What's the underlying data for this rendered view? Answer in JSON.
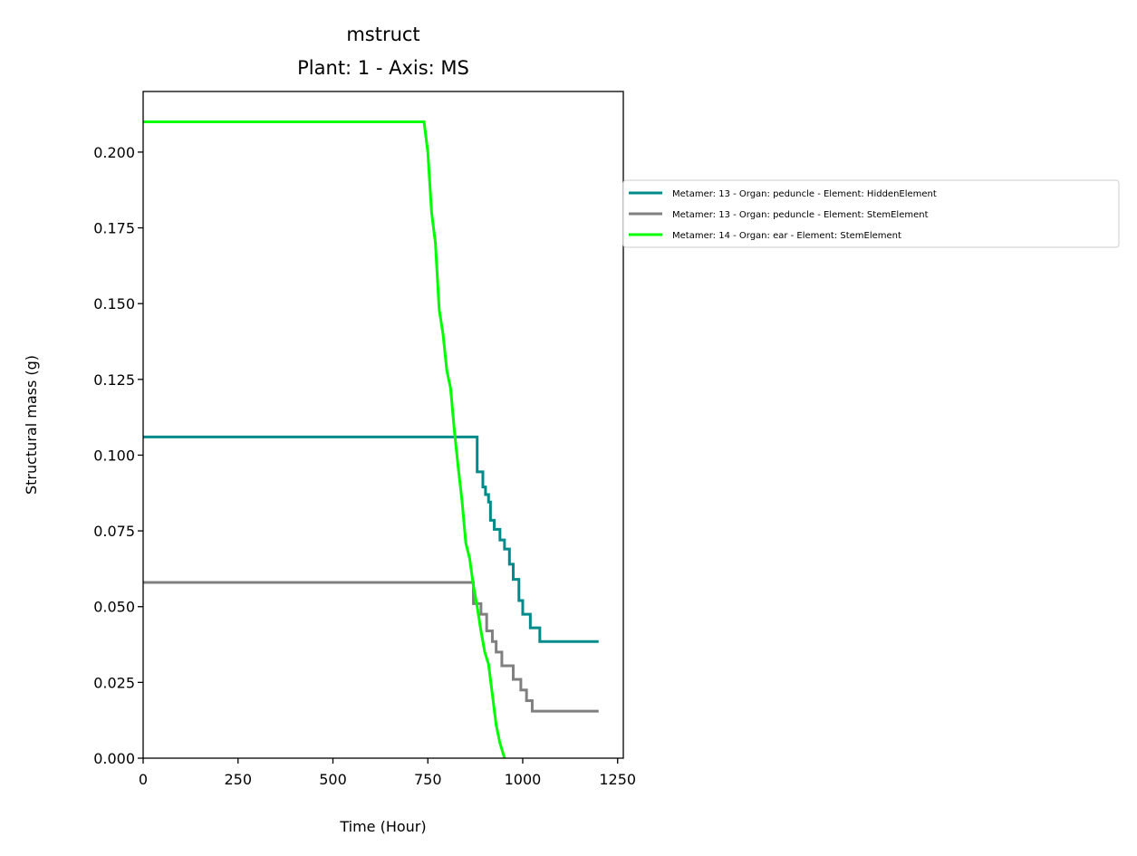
{
  "chart_data": {
    "type": "line",
    "title": "mstruct",
    "subtitle": "Plant: 1 - Axis: MS",
    "xlabel": "Time (Hour)",
    "ylabel": "Structural mass (g)",
    "xlim": [
      0,
      1265
    ],
    "ylim": [
      0,
      0.22
    ],
    "xticks": [
      0,
      250,
      500,
      750,
      1000,
      1250
    ],
    "xtick_labels": [
      "0",
      "250",
      "500",
      "750",
      "1000",
      "1250"
    ],
    "yticks": [
      0,
      0.025,
      0.05,
      0.075,
      0.1,
      0.125,
      0.15,
      0.175,
      0.2
    ],
    "ytick_labels": [
      "0.000",
      "0.025",
      "0.050",
      "0.075",
      "0.100",
      "0.125",
      "0.150",
      "0.175",
      "0.200"
    ],
    "grid": false,
    "legend_position": "outside-right",
    "series": [
      {
        "name": "Metamer: 13 - Organ: peduncle - Element: HiddenElement",
        "color": "#008b8b",
        "step": true,
        "points": [
          [
            0,
            0.106
          ],
          [
            870,
            0.106
          ],
          [
            880,
            0.0945
          ],
          [
            895,
            0.0895
          ],
          [
            902,
            0.087
          ],
          [
            910,
            0.0845
          ],
          [
            915,
            0.0785
          ],
          [
            925,
            0.0755
          ],
          [
            940,
            0.072
          ],
          [
            952,
            0.069
          ],
          [
            965,
            0.064
          ],
          [
            975,
            0.059
          ],
          [
            990,
            0.052
          ],
          [
            1000,
            0.0475
          ],
          [
            1020,
            0.043
          ],
          [
            1045,
            0.0385
          ],
          [
            1200,
            0.0385
          ]
        ]
      },
      {
        "name": "Metamer: 13 - Organ: peduncle - Element: StemElement",
        "color": "#808080",
        "step": true,
        "points": [
          [
            0,
            0.058
          ],
          [
            860,
            0.058
          ],
          [
            870,
            0.051
          ],
          [
            890,
            0.0475
          ],
          [
            905,
            0.042
          ],
          [
            920,
            0.0385
          ],
          [
            930,
            0.035
          ],
          [
            945,
            0.0305
          ],
          [
            975,
            0.026
          ],
          [
            995,
            0.0225
          ],
          [
            1010,
            0.019
          ],
          [
            1025,
            0.0155
          ],
          [
            1200,
            0.0155
          ]
        ]
      },
      {
        "name": "Metamer: 14 - Organ: ear - Element: StemElement",
        "color": "#00ff00",
        "step": false,
        "points": [
          [
            0,
            0.21
          ],
          [
            740,
            0.21
          ],
          [
            750,
            0.2
          ],
          [
            760,
            0.18
          ],
          [
            770,
            0.17
          ],
          [
            780,
            0.148
          ],
          [
            790,
            0.14
          ],
          [
            800,
            0.128
          ],
          [
            810,
            0.122
          ],
          [
            820,
            0.108
          ],
          [
            830,
            0.096
          ],
          [
            840,
            0.085
          ],
          [
            850,
            0.071
          ],
          [
            860,
            0.066
          ],
          [
            870,
            0.057
          ],
          [
            880,
            0.05
          ],
          [
            890,
            0.042
          ],
          [
            900,
            0.035
          ],
          [
            910,
            0.031
          ],
          [
            920,
            0.021
          ],
          [
            930,
            0.011
          ],
          [
            940,
            0.005
          ],
          [
            952,
            0.0
          ]
        ]
      }
    ]
  }
}
